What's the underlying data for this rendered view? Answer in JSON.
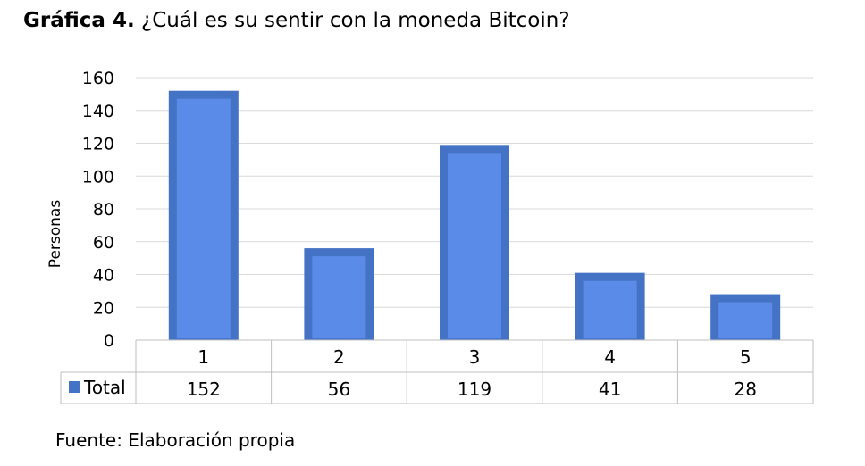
{
  "title": {
    "bold_part": "Gráfica 4.",
    "text_part": "¿Cuál es su sentir con la moneda Bitcoin?"
  },
  "source": "Fuente: Elaboración propia",
  "chart_data": {
    "type": "bar",
    "categories": [
      "1",
      "2",
      "3",
      "4",
      "5"
    ],
    "series": [
      {
        "name": "Total",
        "values": [
          152,
          56,
          119,
          41,
          28
        ]
      }
    ],
    "ylabel": "Personas",
    "xlabel": "",
    "ylim": [
      0,
      160
    ],
    "yticks": [
      0,
      20,
      40,
      60,
      80,
      100,
      120,
      140,
      160
    ],
    "grid": true,
    "data_table": true,
    "bar_color": "#4472C4",
    "bar_inner_color": "#5B8BE8"
  }
}
